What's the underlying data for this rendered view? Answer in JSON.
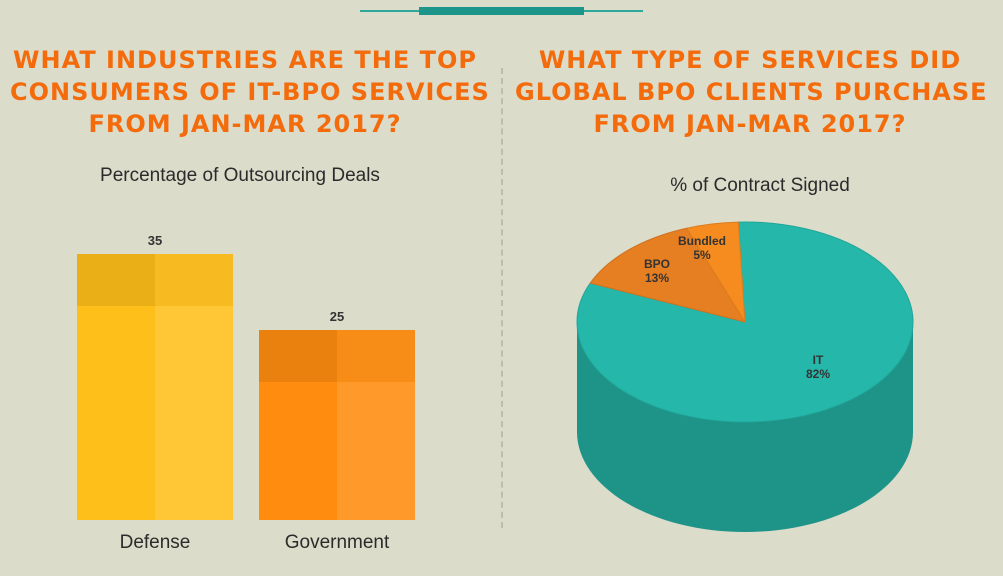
{
  "left_panel": {
    "headline_lines": [
      "What industries are the top",
      "consumers of IT-BPO services",
      "from Jan-Mar 2017?"
    ]
  },
  "right_panel": {
    "headline_lines": [
      "What type of services did",
      "global BPO clients purchase",
      "from Jan-Mar 2017?"
    ]
  },
  "colors": {
    "headline": "#f46b0c",
    "defense": "#ffbf1a",
    "government": "#ff8c0f",
    "it": "#25b8aa",
    "bpo": "#e67e22",
    "bundled": "#f68b1f"
  },
  "chart_data": [
    {
      "type": "bar",
      "title": "Percentage of Outsourcing Deals",
      "categories": [
        "Defense",
        "Government"
      ],
      "values": [
        35,
        25
      ],
      "value_labels": [
        "35",
        "25"
      ],
      "ylim": [
        0,
        35
      ]
    },
    {
      "type": "pie",
      "title": "% of Contract Signed",
      "labels": [
        "IT",
        "BPO",
        "Bundled"
      ],
      "values": [
        82,
        13,
        5
      ],
      "value_labels": [
        "82%",
        "13%",
        "5%"
      ],
      "style": "3d"
    }
  ]
}
